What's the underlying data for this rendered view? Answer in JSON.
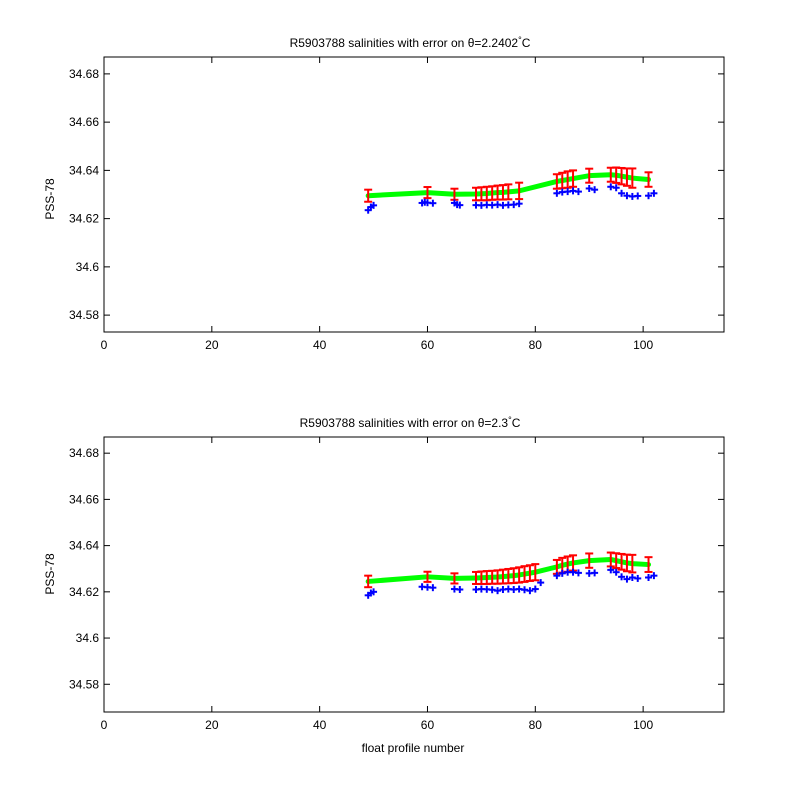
{
  "colors": {
    "background": "#ffffff",
    "axes": "#000000",
    "fit_line": "#00ff00",
    "error_bars": "#ff0000",
    "data_points": "#0000ff"
  },
  "chart_data": [
    {
      "type": "scatter",
      "title_prefix": "R5903788 salinities with error on ",
      "title_theta": "θ",
      "title_value": "=2.2402",
      "title_degree": "°",
      "title_unit": "C",
      "xlabel": "",
      "ylabel": "PSS-78",
      "xlim": [
        0,
        115
      ],
      "ylim": [
        34.573,
        34.687
      ],
      "xticks": [
        0,
        20,
        40,
        60,
        80,
        100
      ],
      "yticks": [
        34.58,
        34.6,
        34.62,
        34.64,
        34.66,
        34.68
      ],
      "ytick_labels": [
        "34.58",
        "34.6",
        "34.62",
        "34.64",
        "34.66",
        "34.68"
      ],
      "grid": false,
      "series": [
        {
          "kind": "fit_with_error",
          "x": [
            49,
            60,
            65,
            69,
            70,
            71,
            72,
            73,
            74,
            75,
            77,
            84,
            85,
            86,
            87,
            90,
            94,
            95,
            96,
            97,
            98,
            101
          ],
          "y": [
            34.6295,
            34.6308,
            34.6301,
            34.6302,
            34.6303,
            34.6304,
            34.6306,
            34.6308,
            34.6309,
            34.6311,
            34.6315,
            34.6354,
            34.6358,
            34.6362,
            34.6366,
            34.6378,
            34.6382,
            34.638,
            34.6376,
            34.6372,
            34.6368,
            34.6362
          ],
          "error": [
            0.0025,
            0.0023,
            0.0023,
            0.0026,
            0.0027,
            0.0028,
            0.0028,
            0.0029,
            0.003,
            0.0031,
            0.0034,
            0.003,
            0.0032,
            0.0034,
            0.0034,
            0.0029,
            0.0029,
            0.0032,
            0.0034,
            0.0036,
            0.004,
            0.003
          ]
        },
        {
          "kind": "measured",
          "x": [
            49,
            49.5,
            50,
            59,
            59.5,
            60,
            61,
            65,
            65.5,
            66,
            69,
            70,
            71,
            72,
            73,
            74,
            75,
            76,
            77,
            84,
            85,
            86,
            87,
            88,
            90,
            91,
            94,
            95,
            96,
            97,
            98,
            99,
            101,
            102
          ],
          "y": [
            34.6235,
            34.6248,
            34.6255,
            34.6265,
            34.6268,
            34.6266,
            34.6264,
            34.6265,
            34.6258,
            34.6256,
            34.6256,
            34.6255,
            34.6257,
            34.6256,
            34.6258,
            34.6255,
            34.6257,
            34.6258,
            34.6262,
            34.6305,
            34.631,
            34.6312,
            34.6315,
            34.6312,
            34.6325,
            34.632,
            34.6332,
            34.6328,
            34.6305,
            34.6295,
            34.6292,
            34.6294,
            34.6295,
            34.6305
          ]
        }
      ]
    },
    {
      "type": "scatter",
      "title_prefix": "R5903788 salinities with error on ",
      "title_theta": "θ",
      "title_value": "=2.3",
      "title_degree": "°",
      "title_unit": "C",
      "xlabel": "float profile number",
      "ylabel": "PSS-78",
      "xlim": [
        0,
        115
      ],
      "ylim": [
        34.568,
        34.687
      ],
      "xticks": [
        0,
        20,
        40,
        60,
        80,
        100
      ],
      "yticks": [
        34.58,
        34.6,
        34.62,
        34.64,
        34.66,
        34.68
      ],
      "ytick_labels": [
        "34.58",
        "34.6",
        "34.62",
        "34.64",
        "34.66",
        "34.68"
      ],
      "grid": false,
      "series": [
        {
          "kind": "fit_with_error",
          "x": [
            49,
            60,
            65,
            69,
            70,
            71,
            72,
            73,
            74,
            75,
            76,
            77,
            78,
            79,
            80,
            84,
            85,
            86,
            87,
            90,
            94,
            95,
            96,
            97,
            98,
            101
          ],
          "y": [
            34.6245,
            34.6265,
            34.6258,
            34.626,
            34.6261,
            34.6262,
            34.6263,
            34.6264,
            34.6266,
            34.6268,
            34.627,
            34.6273,
            34.6277,
            34.6281,
            34.6285,
            34.6308,
            34.6315,
            34.632,
            34.6325,
            34.6335,
            34.634,
            34.6335,
            34.633,
            34.6325,
            34.6322,
            34.6318
          ],
          "error": [
            0.0025,
            0.0022,
            0.0022,
            0.0026,
            0.0027,
            0.0028,
            0.0028,
            0.0029,
            0.003,
            0.0031,
            0.0032,
            0.0033,
            0.0034,
            0.0034,
            0.0035,
            0.003,
            0.0032,
            0.0033,
            0.0033,
            0.0031,
            0.003,
            0.0032,
            0.0034,
            0.0036,
            0.0038,
            0.0032
          ]
        },
        {
          "kind": "measured",
          "x": [
            49,
            49.5,
            50,
            59,
            60,
            61,
            65,
            66,
            69,
            70,
            71,
            72,
            73,
            74,
            75,
            76,
            77,
            78,
            79,
            80,
            81,
            84,
            85,
            86,
            87,
            88,
            90,
            91,
            94,
            95,
            96,
            97,
            98,
            99,
            101,
            102
          ],
          "y": [
            34.6185,
            34.6195,
            34.62,
            34.6222,
            34.622,
            34.6218,
            34.6212,
            34.621,
            34.621,
            34.6212,
            34.6211,
            34.6209,
            34.6205,
            34.621,
            34.6212,
            34.621,
            34.6212,
            34.6209,
            34.6205,
            34.6212,
            34.624,
            34.627,
            34.628,
            34.6285,
            34.6285,
            34.6282,
            34.628,
            34.6282,
            34.6295,
            34.6285,
            34.6265,
            34.6255,
            34.6262,
            34.6258,
            34.6262,
            34.627
          ]
        }
      ]
    }
  ]
}
